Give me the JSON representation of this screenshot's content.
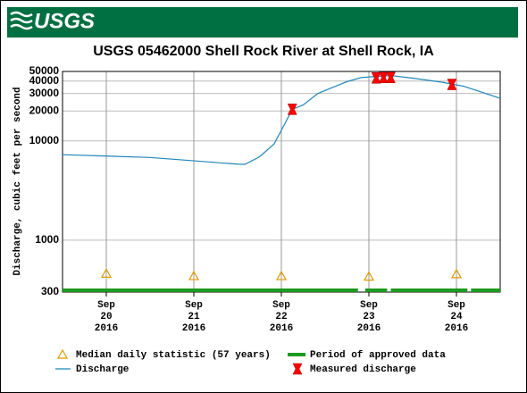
{
  "header": {
    "logo": "USGS"
  },
  "chart_data": {
    "type": "line",
    "title": "USGS 05462000 Shell Rock River at Shell Rock, IA",
    "y_label": "Discharge, cubic feet per second",
    "log_y": true,
    "grid": true,
    "xlim": [
      "2016-09-19T12:00",
      "2016-09-24T12:00"
    ],
    "xticks": [
      {
        "value": "2016-09-20T00:00",
        "label": [
          "Sep",
          "20",
          "2016"
        ]
      },
      {
        "value": "2016-09-21T00:00",
        "label": [
          "Sep",
          "21",
          "2016"
        ]
      },
      {
        "value": "2016-09-22T00:00",
        "label": [
          "Sep",
          "22",
          "2016"
        ]
      },
      {
        "value": "2016-09-23T00:00",
        "label": [
          "Sep",
          "23",
          "2016"
        ]
      },
      {
        "value": "2016-09-24T00:00",
        "label": [
          "Sep",
          "24",
          "2016"
        ]
      }
    ],
    "ylim": [
      300,
      50000
    ],
    "yticks": [
      300,
      1000,
      10000,
      20000,
      30000,
      40000,
      50000
    ],
    "series": [
      {
        "name": "Discharge",
        "style": "line",
        "color": "#1f86b8",
        "x": [
          "2016-09-19T12:00",
          "2016-09-20T12:00",
          "2016-09-21T12:00",
          "2016-09-21T14:00",
          "2016-09-21T18:00",
          "2016-09-21T22:00",
          "2016-09-22T01:00",
          "2016-09-22T03:00",
          "2016-09-22T06:00",
          "2016-09-22T10:00",
          "2016-09-22T14:00",
          "2016-09-22T18:00",
          "2016-09-22T22:00",
          "2016-09-23T06:00",
          "2016-09-23T12:00",
          "2016-09-23T20:00",
          "2016-09-24T02:00",
          "2016-09-24T12:00"
        ],
        "values": [
          7260,
          6800,
          5830,
          5800,
          6900,
          9300,
          15000,
          20800,
          23000,
          30000,
          34500,
          39500,
          43500,
          45500,
          42800,
          39000,
          35500,
          26800
        ]
      },
      {
        "name": "Measured discharge",
        "style": "hourglass",
        "color": "#ff0000",
        "x": [
          "2016-09-22T03:00",
          "2016-09-23T02:00",
          "2016-09-23T04:00",
          "2016-09-23T06:00",
          "2016-09-23T22:45"
        ],
        "values": [
          20800,
          43000,
          43500,
          43500,
          37000
        ]
      },
      {
        "name": "Median daily statistic (57 years)",
        "style": "triangle",
        "color": "#e09a00",
        "x": [
          "2016-09-20T00:00",
          "2016-09-21T00:00",
          "2016-09-22T00:00",
          "2016-09-23T00:00",
          "2016-09-24T00:00"
        ],
        "values": [
          460,
          435,
          435,
          430,
          455
        ]
      }
    ],
    "periods": [
      {
        "name": "Period of approved data",
        "color": "#1e9a1e",
        "ranges": [
          [
            "2016-09-19T12:00",
            "2016-09-22T21:00"
          ],
          [
            "2016-09-22T23:00",
            "2016-09-23T05:00"
          ],
          [
            "2016-09-23T06:00",
            "2016-09-24T03:00"
          ],
          [
            "2016-09-24T04:00",
            "2016-09-24T12:00"
          ]
        ]
      }
    ]
  }
}
